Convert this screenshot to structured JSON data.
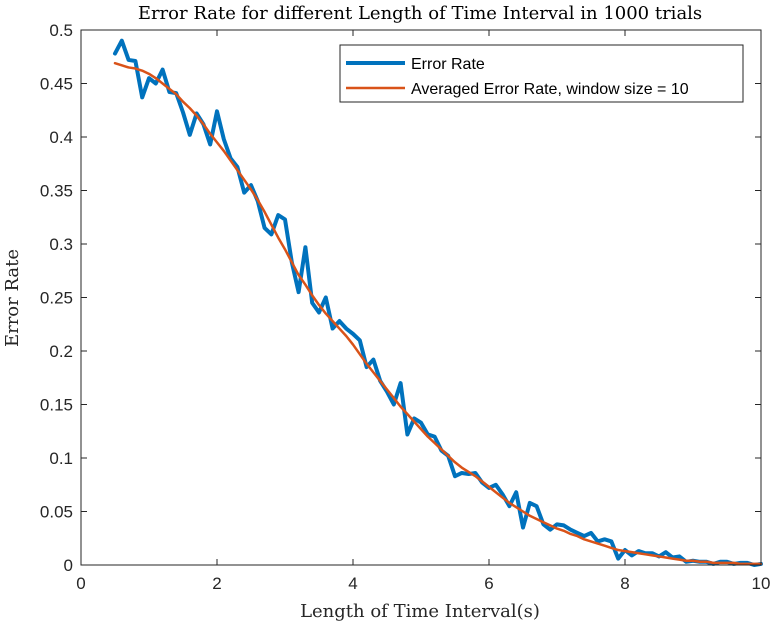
{
  "chart_data": {
    "type": "line",
    "title": "Error Rate for different Length of Time Interval in 1000 trials",
    "xlabel": "Length of Time Interval(s)",
    "ylabel": "Error Rate",
    "xlim": [
      0,
      10
    ],
    "ylim": [
      0,
      0.5
    ],
    "xticks": [
      0,
      2,
      4,
      6,
      8,
      10
    ],
    "yticks": [
      0,
      0.05,
      0.1,
      0.15,
      0.2,
      0.25,
      0.3,
      0.35,
      0.4,
      0.45,
      0.5
    ],
    "xtick_labels": [
      "0",
      "2",
      "4",
      "6",
      "8",
      "10"
    ],
    "ytick_labels": [
      "0",
      "0.05",
      "0.1",
      "0.15",
      "0.2",
      "0.25",
      "0.3",
      "0.35",
      "0.4",
      "0.45",
      "0.5"
    ],
    "grid": false,
    "legend_position": "top-right",
    "x": [
      0.5,
      0.6,
      0.7,
      0.8,
      0.9,
      1.0,
      1.1,
      1.2,
      1.3,
      1.4,
      1.5,
      1.6,
      1.7,
      1.8,
      1.9,
      2.0,
      2.1,
      2.2,
      2.3,
      2.4,
      2.5,
      2.6,
      2.7,
      2.8,
      2.9,
      3.0,
      3.1,
      3.2,
      3.3,
      3.4,
      3.5,
      3.6,
      3.7,
      3.8,
      3.9,
      4.0,
      4.1,
      4.2,
      4.3,
      4.4,
      4.5,
      4.6,
      4.7,
      4.8,
      4.9,
      5.0,
      5.1,
      5.2,
      5.3,
      5.4,
      5.5,
      5.6,
      5.7,
      5.8,
      5.9,
      6.0,
      6.1,
      6.2,
      6.3,
      6.4,
      6.5,
      6.6,
      6.7,
      6.8,
      6.9,
      7.0,
      7.1,
      7.2,
      7.3,
      7.4,
      7.5,
      7.6,
      7.7,
      7.8,
      7.9,
      8.0,
      8.1,
      8.2,
      8.3,
      8.4,
      8.5,
      8.6,
      8.7,
      8.8,
      8.9,
      9.0,
      9.1,
      9.2,
      9.3,
      9.4,
      9.5,
      9.6,
      9.7,
      9.8,
      9.9,
      10.0
    ],
    "series": [
      {
        "name": "Error Rate",
        "color": "#0072BD",
        "values": [
          0.478,
          0.49,
          0.472,
          0.471,
          0.437,
          0.455,
          0.45,
          0.463,
          0.442,
          0.441,
          0.423,
          0.402,
          0.422,
          0.412,
          0.393,
          0.424,
          0.398,
          0.38,
          0.372,
          0.348,
          0.355,
          0.34,
          0.315,
          0.309,
          0.327,
          0.323,
          0.283,
          0.255,
          0.297,
          0.245,
          0.236,
          0.25,
          0.221,
          0.228,
          0.221,
          0.216,
          0.21,
          0.185,
          0.192,
          0.172,
          0.162,
          0.15,
          0.17,
          0.122,
          0.137,
          0.133,
          0.122,
          0.12,
          0.107,
          0.102,
          0.083,
          0.086,
          0.085,
          0.086,
          0.077,
          0.072,
          0.075,
          0.066,
          0.055,
          0.068,
          0.035,
          0.058,
          0.055,
          0.038,
          0.033,
          0.038,
          0.037,
          0.033,
          0.03,
          0.027,
          0.03,
          0.022,
          0.024,
          0.022,
          0.006,
          0.014,
          0.009,
          0.013,
          0.011,
          0.011,
          0.008,
          0.012,
          0.007,
          0.008,
          0.003,
          0.004,
          0.003,
          0.003,
          0.001,
          0.003,
          0.003,
          0.001,
          0.002,
          0.002,
          0.0,
          0.001
        ],
        "line_width": 4
      },
      {
        "name": "Averaged Error Rate, window size = 10",
        "color": "#D95319",
        "values": [
          0.469,
          0.467,
          0.465,
          0.464,
          0.462,
          0.459,
          0.455,
          0.45,
          0.445,
          0.44,
          0.433,
          0.427,
          0.42,
          0.412,
          0.403,
          0.395,
          0.387,
          0.378,
          0.369,
          0.36,
          0.351,
          0.341,
          0.33,
          0.318,
          0.306,
          0.295,
          0.283,
          0.271,
          0.262,
          0.252,
          0.243,
          0.235,
          0.228,
          0.221,
          0.214,
          0.206,
          0.197,
          0.188,
          0.18,
          0.172,
          0.164,
          0.156,
          0.148,
          0.141,
          0.134,
          0.127,
          0.12,
          0.114,
          0.108,
          0.102,
          0.096,
          0.091,
          0.087,
          0.083,
          0.078,
          0.073,
          0.068,
          0.063,
          0.058,
          0.054,
          0.05,
          0.046,
          0.043,
          0.04,
          0.037,
          0.034,
          0.032,
          0.029,
          0.027,
          0.024,
          0.022,
          0.02,
          0.018,
          0.016,
          0.014,
          0.013,
          0.012,
          0.011,
          0.01,
          0.009,
          0.008,
          0.007,
          0.006,
          0.005,
          0.004,
          0.004,
          0.003,
          0.003,
          0.002,
          0.002,
          0.002,
          0.002,
          0.001,
          0.001,
          0.001,
          0.001
        ],
        "line_width": 2.5
      }
    ]
  }
}
